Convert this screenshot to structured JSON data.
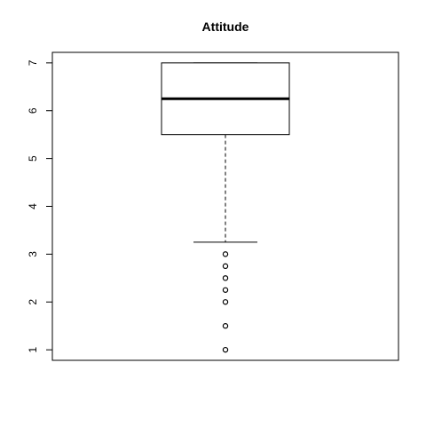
{
  "chart_data": {
    "type": "boxplot",
    "title": "Attitude",
    "xlabel": "",
    "ylabel": "",
    "ylim": [
      0.78,
      7.22
    ],
    "yticks": [
      1,
      2,
      3,
      4,
      5,
      6,
      7
    ],
    "grid": false,
    "series": [
      {
        "min": 3.25,
        "q1": 5.5,
        "median": 6.25,
        "q3": 7.0,
        "max": 7.0,
        "outliers": [
          3.0,
          2.75,
          2.5,
          2.25,
          2.0,
          1.5,
          1.0
        ]
      }
    ],
    "colors": {
      "line": "#000000",
      "box_fill": "#ffffff",
      "background": "#ffffff"
    }
  }
}
